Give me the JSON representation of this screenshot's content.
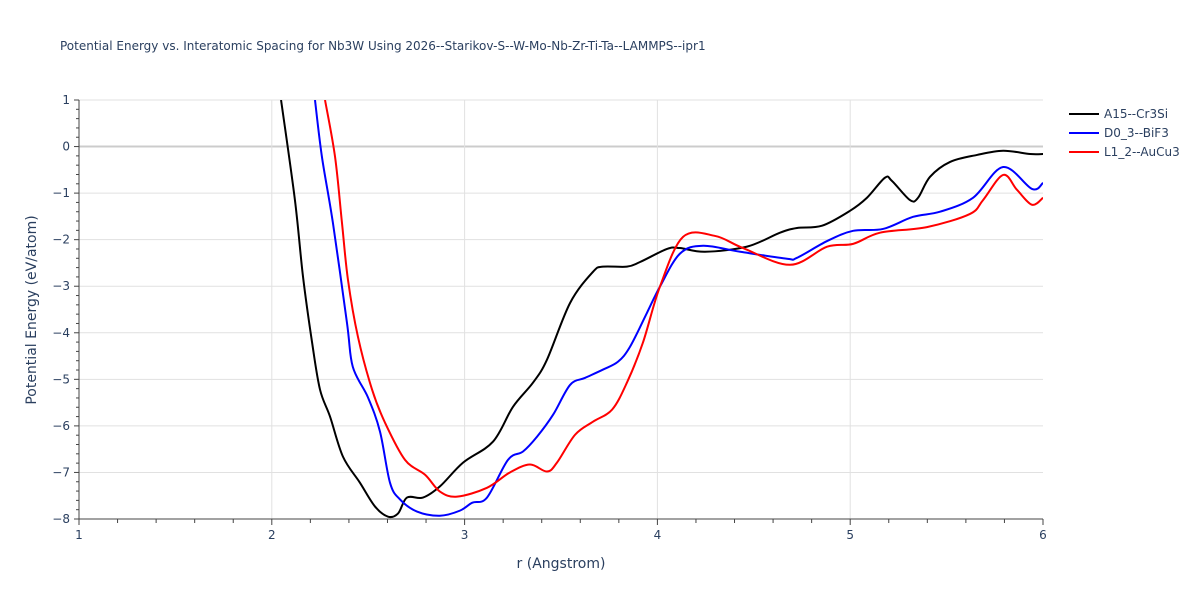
{
  "chart_data": {
    "type": "line",
    "title": "Potential Energy vs. Interatomic Spacing for Nb3W Using 2026--Starikov-S--W-Mo-Nb-Zr-Ti-Ta--LAMMPS--ipr1",
    "xlabel": "r (Angstrom)",
    "ylabel": "Potential Energy (eV/atom)",
    "xlim": [
      1,
      6
    ],
    "ylim": [
      -8,
      1
    ],
    "xticks": [
      "1",
      "2",
      "3",
      "4",
      "5",
      "6"
    ],
    "yticks": [
      "1",
      "0",
      "−1",
      "−2",
      "−3",
      "−4",
      "−5",
      "−6",
      "−7",
      "−8"
    ],
    "grid": true,
    "legend_position": "top-right",
    "series": [
      {
        "name": "A15--Cr3Si",
        "color": "#000000",
        "x": [
          2.048,
          2.12,
          2.162,
          2.209,
          2.25,
          2.302,
          2.369,
          2.457,
          2.535,
          2.603,
          2.655,
          2.701,
          2.784,
          2.872,
          2.992,
          3.147,
          3.251,
          3.355,
          3.427,
          3.547,
          3.666,
          3.718,
          3.842,
          3.91,
          4.05,
          4.117,
          4.247,
          4.465,
          4.636,
          4.724,
          4.854,
          4.999,
          5.087,
          5.18,
          5.217,
          5.31,
          5.352,
          5.414,
          5.518,
          5.658,
          5.793,
          5.933,
          6.0
        ],
        "y": [
          1.0,
          -1.15,
          -2.8,
          -4.21,
          -5.22,
          -5.8,
          -6.66,
          -7.22,
          -7.73,
          -7.95,
          -7.88,
          -7.54,
          -7.54,
          -7.3,
          -6.79,
          -6.34,
          -5.59,
          -5.07,
          -4.58,
          -3.36,
          -2.69,
          -2.58,
          -2.58,
          -2.48,
          -2.2,
          -2.18,
          -2.26,
          -2.15,
          -1.85,
          -1.75,
          -1.7,
          -1.38,
          -1.1,
          -0.67,
          -0.74,
          -1.15,
          -1.1,
          -0.65,
          -0.33,
          -0.18,
          -0.09,
          -0.16,
          -0.16
        ]
      },
      {
        "name": "D0_3--BiF3",
        "color": "#0000ff",
        "x": [
          2.224,
          2.26,
          2.317,
          2.39,
          2.42,
          2.499,
          2.561,
          2.613,
          2.665,
          2.753,
          2.872,
          2.976,
          3.04,
          3.116,
          3.225,
          3.303,
          3.376,
          3.459,
          3.547,
          3.624,
          3.718,
          3.796,
          3.858,
          3.946,
          4.013,
          4.117,
          4.237,
          4.43,
          4.672,
          4.724,
          4.88,
          5.015,
          5.17,
          5.326,
          5.466,
          5.637,
          5.793,
          5.943,
          6.0
        ],
        "y": [
          1.0,
          -0.22,
          -1.64,
          -3.79,
          -4.73,
          -5.39,
          -6.12,
          -7.22,
          -7.58,
          -7.84,
          -7.93,
          -7.82,
          -7.65,
          -7.54,
          -6.73,
          -6.55,
          -6.23,
          -5.76,
          -5.12,
          -4.97,
          -4.79,
          -4.62,
          -4.3,
          -3.57,
          -3.01,
          -2.3,
          -2.13,
          -2.26,
          -2.41,
          -2.39,
          -2.03,
          -1.81,
          -1.77,
          -1.51,
          -1.4,
          -1.1,
          -0.44,
          -0.91,
          -0.78
        ]
      },
      {
        "name": "L1_2--AuCu3",
        "color": "#ff0000",
        "x": [
          2.276,
          2.328,
          2.364,
          2.395,
          2.447,
          2.52,
          2.587,
          2.691,
          2.795,
          2.872,
          2.961,
          3.116,
          3.235,
          3.339,
          3.427,
          3.479,
          3.573,
          3.666,
          3.765,
          3.842,
          3.925,
          4.013,
          4.133,
          4.299,
          4.444,
          4.688,
          4.88,
          5.015,
          5.155,
          5.398,
          5.62,
          5.689,
          5.793,
          5.865,
          5.943,
          6.0
        ],
        "y": [
          1.0,
          -0.22,
          -1.64,
          -2.86,
          -4.09,
          -5.22,
          -5.93,
          -6.73,
          -7.05,
          -7.41,
          -7.52,
          -7.33,
          -7.0,
          -6.83,
          -6.98,
          -6.79,
          -6.19,
          -5.91,
          -5.65,
          -5.07,
          -4.21,
          -3.01,
          -1.94,
          -1.92,
          -2.18,
          -2.54,
          -2.15,
          -2.09,
          -1.85,
          -1.73,
          -1.45,
          -1.15,
          -0.61,
          -0.93,
          -1.25,
          -1.1
        ]
      }
    ]
  }
}
